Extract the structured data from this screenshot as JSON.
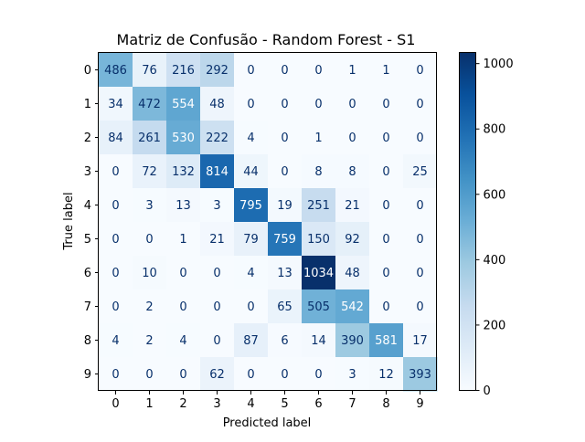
{
  "chart_data": {
    "type": "heatmap",
    "title": "Matriz de Confusão - Random Forest - S1",
    "xlabel": "Predicted label",
    "ylabel": "True label",
    "x_ticks": [
      "0",
      "1",
      "2",
      "3",
      "4",
      "5",
      "6",
      "7",
      "8",
      "9"
    ],
    "y_ticks": [
      "0",
      "1",
      "2",
      "3",
      "4",
      "5",
      "6",
      "7",
      "8",
      "9"
    ],
    "matrix": [
      [
        486,
        76,
        216,
        292,
        0,
        0,
        0,
        1,
        1,
        0
      ],
      [
        34,
        472,
        554,
        48,
        0,
        0,
        0,
        0,
        0,
        0
      ],
      [
        84,
        261,
        530,
        222,
        4,
        0,
        1,
        0,
        0,
        0
      ],
      [
        0,
        72,
        132,
        814,
        44,
        0,
        8,
        8,
        0,
        25
      ],
      [
        0,
        3,
        13,
        3,
        795,
        19,
        251,
        21,
        0,
        0
      ],
      [
        0,
        0,
        1,
        21,
        79,
        759,
        150,
        92,
        0,
        0
      ],
      [
        0,
        10,
        0,
        0,
        4,
        13,
        1034,
        48,
        0,
        0
      ],
      [
        0,
        2,
        0,
        0,
        0,
        65,
        505,
        542,
        0,
        0
      ],
      [
        4,
        2,
        4,
        0,
        87,
        6,
        14,
        390,
        581,
        17
      ],
      [
        0,
        0,
        0,
        62,
        0,
        0,
        0,
        3,
        12,
        393
      ]
    ],
    "colormap": "Blues",
    "colorbar": {
      "range": [
        0,
        1034
      ],
      "ticks": [
        0,
        200,
        400,
        600,
        800,
        1000
      ]
    },
    "grid": false
  }
}
